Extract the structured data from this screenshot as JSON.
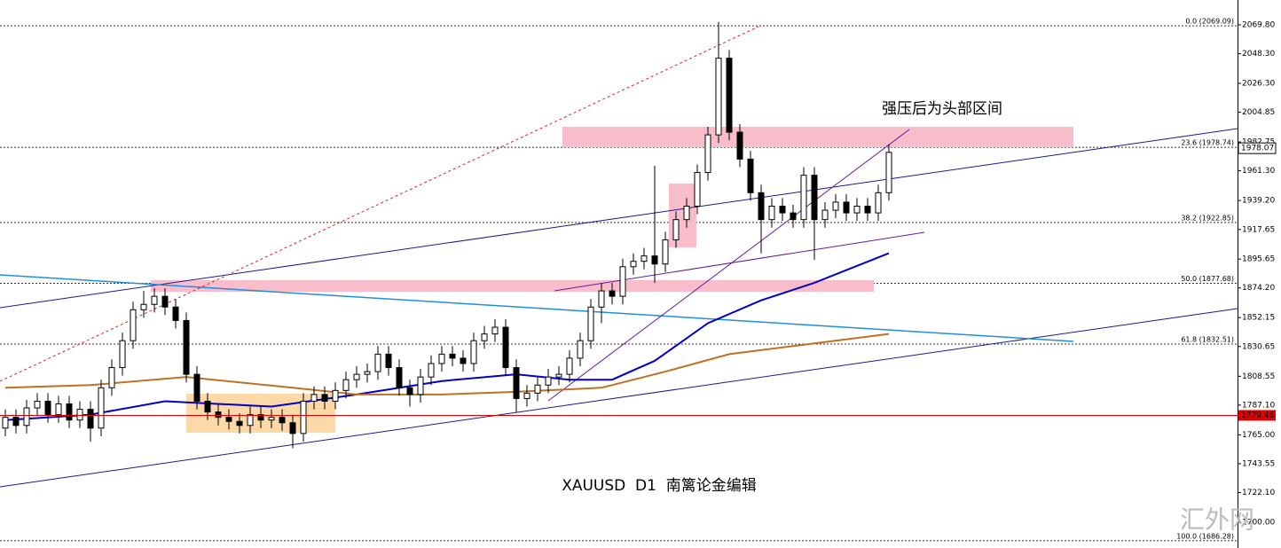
{
  "chart_data": {
    "type": "candlestick",
    "open": [
      1770,
      1778,
      1772,
      1785,
      1790,
      1780,
      1788,
      1776,
      1784,
      1770,
      1800,
      1815,
      1835,
      1858,
      1862,
      1868,
      1860,
      1850,
      1810,
      1790,
      1782,
      1778,
      1775,
      1772,
      1780,
      1776,
      1778,
      1774,
      1766,
      1790,
      1795,
      1790,
      1798,
      1806,
      1810,
      1812,
      1825,
      1815,
      1800,
      1795,
      1808,
      1818,
      1825,
      1822,
      1818,
      1835,
      1840,
      1845,
      1815,
      1792,
      1796,
      1802,
      1808,
      1810,
      1822,
      1835,
      1860,
      1872,
      1868,
      1890,
      1894,
      1898,
      1892,
      1910,
      1925,
      1935,
      1960,
      1988,
      2045,
      1990,
      1970,
      1945,
      1925,
      1935,
      1930,
      1925,
      1958,
      1925,
      1932,
      1938,
      1930,
      1935,
      1930,
      1945
    ],
    "high": [
      1784,
      1784,
      1791,
      1796,
      1796,
      1794,
      1794,
      1790,
      1790,
      1806,
      1821,
      1841,
      1864,
      1872,
      1874,
      1874,
      1866,
      1856,
      1816,
      1796,
      1788,
      1784,
      1781,
      1786,
      1786,
      1784,
      1784,
      1780,
      1796,
      1801,
      1801,
      1804,
      1812,
      1816,
      1818,
      1831,
      1831,
      1821,
      1806,
      1814,
      1824,
      1831,
      1831,
      1828,
      1841,
      1846,
      1851,
      1851,
      1821,
      1802,
      1808,
      1814,
      1816,
      1828,
      1841,
      1866,
      1878,
      1878,
      1896,
      1900,
      1904,
      1965,
      1916,
      1931,
      1941,
      1966,
      1994,
      2072,
      2051,
      1996,
      1976,
      1951,
      1941,
      1941,
      1936,
      1964,
      1964,
      1938,
      1944,
      1944,
      1941,
      1941,
      1951,
      1981
    ],
    "low": [
      1764,
      1766,
      1766,
      1779,
      1774,
      1774,
      1770,
      1770,
      1760,
      1764,
      1794,
      1809,
      1829,
      1852,
      1856,
      1854,
      1844,
      1804,
      1784,
      1776,
      1772,
      1769,
      1766,
      1766,
      1770,
      1770,
      1768,
      1755,
      1760,
      1784,
      1784,
      1784,
      1792,
      1800,
      1804,
      1806,
      1809,
      1794,
      1786,
      1789,
      1802,
      1812,
      1816,
      1812,
      1812,
      1829,
      1834,
      1809,
      1782,
      1786,
      1790,
      1796,
      1802,
      1804,
      1816,
      1829,
      1848,
      1862,
      1862,
      1884,
      1888,
      1878,
      1886,
      1904,
      1919,
      1929,
      1954,
      1982,
      1984,
      1964,
      1939,
      1900,
      1919,
      1924,
      1919,
      1919,
      1895,
      1919,
      1926,
      1924,
      1924,
      1924,
      1924,
      1939
    ],
    "close": [
      1778,
      1772,
      1785,
      1790,
      1780,
      1788,
      1776,
      1784,
      1770,
      1800,
      1815,
      1835,
      1858,
      1862,
      1868,
      1860,
      1850,
      1810,
      1790,
      1782,
      1778,
      1775,
      1772,
      1780,
      1776,
      1778,
      1774,
      1766,
      1790,
      1795,
      1790,
      1798,
      1806,
      1810,
      1812,
      1825,
      1815,
      1800,
      1795,
      1808,
      1818,
      1825,
      1822,
      1818,
      1835,
      1840,
      1845,
      1815,
      1792,
      1796,
      1802,
      1808,
      1810,
      1822,
      1835,
      1860,
      1872,
      1868,
      1890,
      1894,
      1898,
      1892,
      1910,
      1925,
      1935,
      1960,
      1988,
      2045,
      1990,
      1970,
      1945,
      1925,
      1935,
      1930,
      1925,
      1958,
      1925,
      1932,
      1938,
      1930,
      1935,
      1930,
      1945,
      1975
    ],
    "moving_averages": [
      {
        "color": "#0000c8",
        "x": [
          0,
          8,
          15,
          25,
          33,
          41,
          48,
          53,
          57,
          61,
          66,
          71,
          76,
          83
        ],
        "values": [
          1776,
          1780,
          1790,
          1786,
          1795,
          1805,
          1810,
          1806,
          1806,
          1820,
          1848,
          1865,
          1878,
          1900
        ]
      },
      {
        "color": "#c07020",
        "x": [
          0,
          8,
          17,
          27,
          33,
          41,
          48,
          56,
          62,
          68,
          75,
          83
        ],
        "values": [
          1800,
          1802,
          1808,
          1800,
          1795,
          1795,
          1797,
          1800,
          1812,
          1825,
          1832,
          1840
        ]
      }
    ],
    "ylim": [
      1680.88,
      2088.26
    ],
    "yticks": [
      {
        "value": 2069.8,
        "label": "2069.80"
      },
      {
        "value": 2048.3,
        "label": "2048.30"
      },
      {
        "value": 2026.3,
        "label": "2026.30"
      },
      2004.85,
      1982.75,
      {
        "value": 1961.3,
        "label": "1961.30"
      },
      {
        "value": 1939.2,
        "label": "1939.20"
      },
      1917.65,
      1895.65,
      {
        "value": 1874.2,
        "label": "1874.20"
      },
      1852.15,
      1830.65,
      1808.55,
      {
        "value": 1787.1,
        "label": "1787.10"
      },
      {
        "value": 1765.0,
        "label": "1765.00"
      },
      1743.55,
      {
        "value": 1722.1,
        "label": "1722.10"
      },
      {
        "value": 1700.0,
        "label": "1700.00"
      }
    ],
    "fib_levels": [
      {
        "value": 2069.09,
        "label": "0.0 (2069.09)"
      },
      {
        "value": 1978.74,
        "label": "23.6 (1978.74)"
      },
      {
        "value": 1922.85,
        "label": "38.2 (1922.85)"
      },
      {
        "value": 1877.68,
        "label": "50.0 (1877.68)"
      },
      {
        "value": 1832.51,
        "label": "61.8 (1832.51)"
      },
      {
        "value": 1686.28,
        "label": "100.0 (1686.28)"
      }
    ],
    "price_lines": [
      {
        "value": 1779.46,
        "color": "#e00000"
      }
    ],
    "current_price": 1978.07,
    "annotations": [
      "强压后为头部区间",
      "XAUUSD  D1  南篱论金编辑"
    ],
    "watermark": "汇外网"
  }
}
